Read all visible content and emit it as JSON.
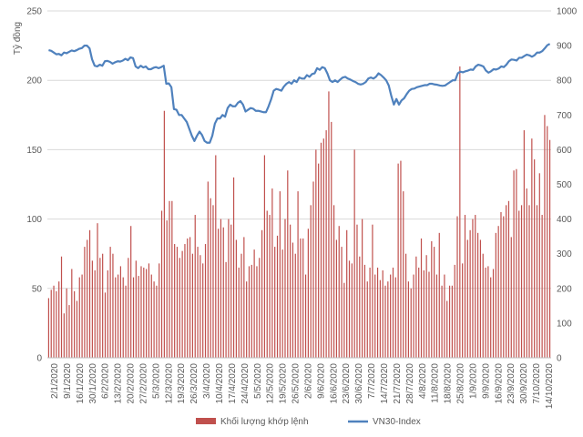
{
  "chart_data": {
    "type": "bar+line",
    "ylabel_left": "Tỷ đồng",
    "left_axis": {
      "ylim": [
        0,
        250
      ],
      "ticks": [
        0,
        50,
        100,
        150,
        200,
        250
      ]
    },
    "right_axis": {
      "ylim": [
        0,
        1000
      ],
      "ticks": [
        0,
        100,
        200,
        300,
        400,
        500,
        600,
        700,
        800,
        900,
        1000
      ]
    },
    "x_tick_labels": [
      "2/1/2020",
      "9/1/2020",
      "16/1/2020",
      "30/1/2020",
      "6/2/2020",
      "13/2/2020",
      "20/2/2020",
      "27/2/2020",
      "5/3/2020",
      "12/3/2020",
      "19/3/2020",
      "26/3/2020",
      "3/4/2020",
      "10/4/2020",
      "17/4/2020",
      "24/4/2020",
      "5/5/2020",
      "12/5/2020",
      "19/5/2020",
      "26/5/2020",
      "2/6/2020",
      "9/6/2020",
      "16/6/2020",
      "23/6/2020",
      "30/6/2020",
      "7/7/2020",
      "14/7/2020",
      "21/7/2020",
      "28/7/2020",
      "4/8/2020",
      "11/8/2020",
      "18/8/2020",
      "25/8/2020",
      "1/9/2020",
      "9/9/2020",
      "16/9/2020",
      "23/9/2020",
      "30/9/2020",
      "7/10/2020",
      "14/10/2020"
    ],
    "series": [
      {
        "name": "Khối lượng khớp lệnh",
        "axis": "left",
        "color": "#c0504d",
        "values": [
          43,
          49,
          52,
          48,
          55,
          73,
          32,
          50,
          38,
          64,
          48,
          41,
          58,
          60,
          80,
          85,
          92,
          70,
          63,
          97,
          72,
          75,
          47,
          63,
          80,
          75,
          58,
          60,
          66,
          58,
          52,
          72,
          95,
          58,
          70,
          59,
          66,
          65,
          64,
          68,
          60,
          55,
          52,
          68,
          106,
          178,
          99,
          113,
          113,
          82,
          80,
          72,
          77,
          82,
          86,
          87,
          75,
          103,
          80,
          74,
          68,
          82,
          127,
          115,
          110,
          146,
          93,
          100,
          94,
          69,
          100,
          96,
          130,
          85,
          65,
          75,
          87,
          55,
          66,
          67,
          78,
          66,
          72,
          92,
          146,
          106,
          103,
          122,
          80,
          88,
          120,
          78,
          100,
          135,
          96,
          83,
          75,
          120,
          86,
          86,
          60,
          93,
          110,
          127,
          150,
          140,
          155,
          158,
          164,
          192,
          170,
          110,
          85,
          95,
          80,
          54,
          92,
          70,
          68,
          150,
          96,
          73,
          100,
          67,
          55,
          65,
          96,
          60,
          65,
          56,
          63,
          52,
          55,
          60,
          65,
          58,
          140,
          142,
          120,
          75,
          55,
          50,
          60,
          73,
          65,
          86,
          63,
          74,
          62,
          84,
          80,
          60,
          90,
          52,
          60,
          41,
          52,
          52,
          67,
          102,
          210,
          68,
          103,
          85,
          92,
          100,
          103,
          90,
          85,
          75,
          65,
          66,
          58,
          64,
          90,
          95,
          105,
          102,
          110,
          113,
          87,
          135,
          136,
          106,
          110,
          164,
          122,
          110,
          158,
          143,
          110,
          133,
          103,
          175,
          167,
          157
        ]
      },
      {
        "name": "VN30-Index",
        "axis": "right",
        "color": "#4f81bd",
        "values": [
          887,
          885,
          880,
          875,
          876,
          872,
          880,
          878,
          882,
          886,
          884,
          887,
          891,
          893,
          900,
          900,
          892,
          860,
          842,
          840,
          845,
          842,
          855,
          856,
          853,
          848,
          852,
          855,
          854,
          857,
          862,
          858,
          866,
          864,
          840,
          835,
          842,
          837,
          840,
          832,
          832,
          836,
          838,
          835,
          838,
          842,
          790,
          791,
          780,
          717,
          715,
          700,
          700,
          690,
          680,
          660,
          640,
          625,
          640,
          652,
          642,
          625,
          620,
          620,
          640,
          675,
          690,
          690,
          700,
          695,
          720,
          730,
          725,
          725,
          735,
          740,
          730,
          710,
          715,
          720,
          718,
          712,
          712,
          710,
          708,
          708,
          725,
          745,
          770,
          775,
          773,
          770,
          782,
          790,
          795,
          790,
          800,
          795,
          808,
          805,
          805,
          815,
          810,
          818,
          820,
          835,
          830,
          838,
          835,
          820,
          800,
          795,
          800,
          795,
          802,
          808,
          810,
          805,
          802,
          798,
          795,
          790,
          788,
          790,
          795,
          805,
          808,
          805,
          810,
          820,
          815,
          808,
          800,
          785,
          755,
          730,
          746,
          730,
          742,
          748,
          760,
          770,
          775,
          776,
          780,
          782,
          784,
          786,
          786,
          790,
          790,
          788,
          787,
          785,
          784,
          785,
          790,
          795,
          800,
          800,
          820,
          825,
          823,
          826,
          828,
          831,
          830,
          840,
          845,
          843,
          840,
          828,
          822,
          826,
          832,
          831,
          834,
          840,
          838,
          845,
          855,
          860,
          859,
          857,
          865,
          865,
          870,
          874,
          872,
          868,
          872,
          880,
          880,
          884,
          892,
          901,
          905
        ]
      }
    ]
  }
}
